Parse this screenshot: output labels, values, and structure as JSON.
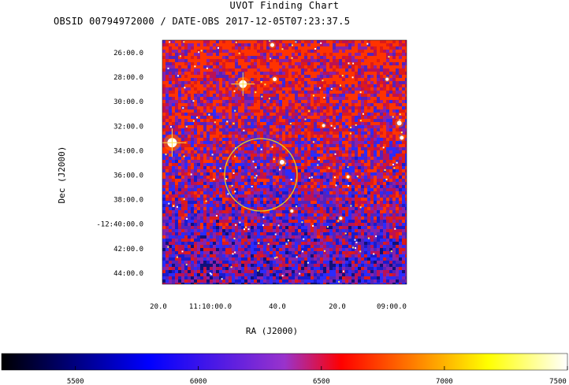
{
  "header": {
    "title": "UVOT Finding Chart",
    "subtitle": "OBSID 00794972000 / DATE-OBS 2017-12-05T07:23:37.5"
  },
  "chart_data": {
    "type": "heatmap",
    "title": "UVOT Finding Chart",
    "subtitle": "OBSID 00794972000 / DATE-OBS 2017-12-05T07:23:37.5",
    "xlabel": "RA (J2000)",
    "ylabel": "Dec (J2000)",
    "x_ticks": [
      "20.0",
      "11:10:00.0",
      "40.0",
      "20.0",
      "09:00.0"
    ],
    "y_ticks": [
      "26:00.0",
      "28:00.0",
      "30:00.0",
      "32:00.0",
      "34:00.0",
      "36:00.0",
      "38:00.0",
      "-12:40:00.0",
      "42:00.0",
      "44:00.0"
    ],
    "colorbar": {
      "ticks": [
        5500,
        6000,
        6500,
        7000,
        7500
      ],
      "range": [
        5200,
        7500
      ],
      "colormap": [
        "#000000",
        "#0000ff",
        "#ff0000",
        "#ffff00",
        "#ffffff"
      ]
    },
    "region": {
      "shape": "circle",
      "color": "#e8d21a"
    },
    "colors": {
      "background_low": "#1a1a9a",
      "background_high": "#cc2200",
      "star": "#ffffff"
    }
  }
}
